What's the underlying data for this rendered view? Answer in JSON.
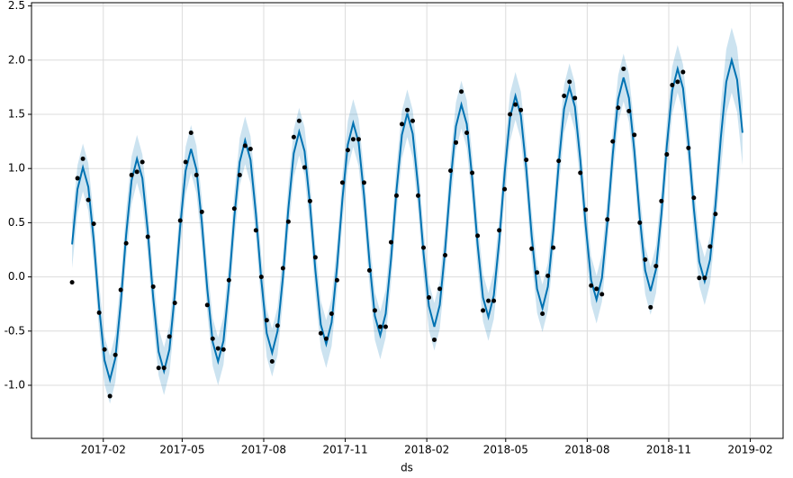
{
  "chart_data": {
    "type": "forecast",
    "xlabel": "ds",
    "grid": true,
    "xlim": [
      -50,
      798
    ],
    "ylim": [
      -1.49,
      2.53
    ],
    "xticks": [
      {
        "value": 31,
        "label": "2017-02"
      },
      {
        "value": 120,
        "label": "2017-05"
      },
      {
        "value": 212,
        "label": "2017-08"
      },
      {
        "value": 304,
        "label": "2017-11"
      },
      {
        "value": 396,
        "label": "2018-02"
      },
      {
        "value": 485,
        "label": "2018-05"
      },
      {
        "value": 577,
        "label": "2018-08"
      },
      {
        "value": 669,
        "label": "2018-11"
      },
      {
        "value": 761,
        "label": "2019-02"
      }
    ],
    "yticks": [
      {
        "value": -1,
        "label": "-1.0"
      },
      -0.5,
      {
        "value": 0,
        "label": "0.0"
      },
      0.5,
      {
        "value": 1,
        "label": "1.0"
      },
      1.5,
      {
        "value": 2,
        "label": "2.0"
      },
      2.5
    ],
    "x": [
      -4.2,
      1.9,
      8,
      14.1,
      20.2,
      26.3,
      32.4,
      38.5,
      44.6,
      50.7,
      56.8,
      62.9,
      69,
      75.1,
      81.2,
      87.3,
      93.4,
      99.5,
      105.6,
      111.7,
      117.8,
      123.9,
      130,
      136.1,
      142.2,
      148.3,
      154.4,
      160.5,
      166.6,
      172.7,
      178.8,
      184.9,
      191,
      197.1,
      203.2,
      209.3,
      215.4,
      221.5,
      227.6,
      233.7,
      239.8,
      245.9,
      252,
      258.1,
      264.2,
      270.3,
      276.4,
      282.5,
      288.6,
      294.7,
      300.8,
      306.9,
      313,
      319.1,
      325.2,
      331.3,
      337.4,
      343.5,
      349.6,
      355.7,
      361.8,
      367.9,
      374,
      380.1,
      386.2,
      392.3,
      398.4,
      404.5,
      410.6,
      416.7,
      422.8,
      428.9,
      435,
      441.1,
      447.2,
      453.3,
      459.4,
      465.5,
      471.6,
      477.7,
      483.8,
      489.9,
      496,
      502.1,
      508.2,
      514.3,
      520.4,
      526.5,
      532.6,
      538.7,
      544.8,
      550.9,
      557,
      563.1,
      569.2,
      575.3,
      581.4,
      587.5,
      593.6,
      599.7,
      605.8,
      611.9,
      618,
      624.1,
      630.2,
      636.3,
      642.4,
      648.5,
      654.6,
      660.7,
      666.8,
      672.9,
      679,
      685.1,
      691.2,
      697.3,
      703.4,
      709.5,
      715.6,
      721.7,
      727.8,
      733.9,
      740,
      746.1,
      752.2
    ],
    "series": [
      {
        "color": "#0072B2",
        "values": [
          0.3,
          0.81,
          1.01,
          0.83,
          0.34,
          -0.28,
          -0.77,
          -0.95,
          -0.75,
          -0.24,
          0.39,
          0.89,
          1.09,
          0.91,
          0.42,
          -0.19,
          -0.69,
          -0.87,
          -0.67,
          -0.16,
          0.47,
          0.98,
          1.18,
          0.99,
          0.5,
          -0.11,
          -0.6,
          -0.78,
          -0.59,
          -0.08,
          0.55,
          1.06,
          1.26,
          1.08,
          0.58,
          -0.03,
          -0.52,
          -0.7,
          -0.5,
          0.0,
          0.63,
          1.14,
          1.34,
          1.16,
          0.67,
          0.06,
          -0.44,
          -0.62,
          -0.42,
          0.09,
          0.72,
          1.22,
          1.42,
          1.24,
          0.75,
          0.14,
          -0.36,
          -0.54,
          -0.34,
          0.17,
          0.8,
          1.31,
          1.51,
          1.32,
          0.83,
          0.22,
          -0.27,
          -0.46,
          -0.26,
          0.25,
          0.88,
          1.39,
          1.59,
          1.41,
          0.91,
          0.3,
          -0.19,
          -0.37,
          -0.17,
          0.33,
          0.96,
          1.47,
          1.67,
          1.49,
          1.0,
          0.38,
          -0.11,
          -0.29,
          -0.09,
          0.42,
          1.04,
          1.55,
          1.75,
          1.57,
          1.08,
          0.47,
          -0.03,
          -0.21,
          -0.01,
          0.5,
          1.13,
          1.64,
          1.84,
          1.65,
          1.16,
          0.55,
          0.06,
          -0.13,
          0.07,
          0.58,
          1.21,
          1.72,
          1.92,
          1.74,
          1.24,
          0.63,
          0.14,
          -0.04,
          0.16,
          0.66,
          1.29,
          1.8,
          2.0,
          1.82,
          1.33
        ]
      }
    ],
    "band": {
      "color": "#0072B2",
      "lower": [
        0.08,
        0.59,
        0.79,
        0.61,
        0.12,
        -0.5,
        -0.99,
        -1.17,
        -0.97,
        -0.46,
        0.17,
        0.67,
        0.87,
        0.69,
        0.2,
        -0.41,
        -0.91,
        -1.09,
        -0.89,
        -0.38,
        0.25,
        0.76,
        0.96,
        0.77,
        0.28,
        -0.33,
        -0.82,
        -1.0,
        -0.81,
        -0.3,
        0.33,
        0.84,
        1.04,
        0.86,
        0.36,
        -0.25,
        -0.74,
        -0.92,
        -0.72,
        -0.22,
        0.41,
        0.92,
        1.12,
        0.94,
        0.45,
        -0.16,
        -0.66,
        -0.84,
        -0.64,
        -0.13,
        0.5,
        1.0,
        1.2,
        1.02,
        0.53,
        -0.08,
        -0.58,
        -0.76,
        -0.56,
        -0.05,
        0.58,
        1.09,
        1.29,
        1.1,
        0.61,
        0.0,
        -0.49,
        -0.68,
        -0.48,
        0.03,
        0.66,
        1.17,
        1.37,
        1.19,
        0.69,
        0.08,
        -0.41,
        -0.59,
        -0.39,
        0.11,
        0.74,
        1.25,
        1.45,
        1.27,
        0.78,
        0.16,
        -0.33,
        -0.51,
        -0.31,
        0.2,
        0.82,
        1.33,
        1.53,
        1.35,
        0.86,
        0.25,
        -0.25,
        -0.43,
        -0.23,
        0.28,
        0.91,
        1.42,
        1.62,
        1.43,
        0.94,
        0.33,
        -0.16,
        -0.35,
        -0.15,
        0.36,
        0.99,
        1.5,
        1.7,
        1.52,
        1.02,
        0.41,
        -0.08,
        -0.26,
        -0.06,
        0.44,
        0.99,
        1.5,
        1.7,
        1.52,
        1.03
      ],
      "upper": [
        0.52,
        1.03,
        1.23,
        1.05,
        0.56,
        -0.06,
        -0.55,
        -0.73,
        -0.53,
        -0.02,
        0.61,
        1.11,
        1.31,
        1.13,
        0.64,
        0.03,
        -0.47,
        -0.65,
        -0.45,
        0.06,
        0.69,
        1.2,
        1.4,
        1.21,
        0.72,
        0.11,
        -0.38,
        -0.56,
        -0.37,
        0.14,
        0.77,
        1.28,
        1.48,
        1.3,
        0.8,
        0.19,
        -0.3,
        -0.48,
        -0.28,
        0.22,
        0.85,
        1.36,
        1.56,
        1.38,
        0.89,
        0.28,
        -0.22,
        -0.4,
        -0.2,
        0.31,
        0.94,
        1.44,
        1.64,
        1.46,
        0.97,
        0.36,
        -0.14,
        -0.32,
        -0.12,
        0.39,
        1.02,
        1.53,
        1.73,
        1.54,
        1.05,
        0.44,
        -0.05,
        -0.24,
        -0.04,
        0.47,
        1.1,
        1.61,
        1.81,
        1.63,
        1.13,
        0.52,
        0.03,
        -0.15,
        0.05,
        0.55,
        1.18,
        1.69,
        1.89,
        1.71,
        1.22,
        0.6,
        0.11,
        -0.07,
        0.13,
        0.64,
        1.26,
        1.77,
        1.97,
        1.79,
        1.3,
        0.69,
        0.19,
        0.01,
        0.21,
        0.72,
        1.35,
        1.86,
        2.06,
        1.87,
        1.38,
        0.77,
        0.28,
        0.09,
        0.29,
        0.8,
        1.43,
        1.94,
        2.14,
        1.96,
        1.46,
        0.85,
        0.36,
        0.18,
        0.38,
        0.88,
        1.59,
        2.1,
        2.3,
        2.12,
        1.63
      ]
    },
    "points": {
      "color": "#000000",
      "values": [
        -0.05,
        0.91,
        1.09,
        0.71,
        0.49,
        -0.33,
        -0.67,
        -1.1,
        -0.72,
        -0.12,
        0.31,
        0.94,
        0.97,
        1.06,
        0.37,
        -0.09,
        -0.84,
        -0.84,
        -0.55,
        -0.24,
        0.52,
        1.06,
        1.33,
        0.94,
        0.6,
        -0.26,
        -0.57,
        -0.66,
        -0.67,
        -0.03,
        0.63,
        0.94,
        1.21,
        1.18,
        0.43,
        0.0,
        -0.4,
        -0.78,
        -0.45,
        0.08,
        0.51,
        1.29,
        1.44,
        1.01,
        0.7,
        0.18,
        -0.52,
        -0.57,
        -0.34,
        -0.03,
        0.87,
        1.17,
        1.27,
        1.27,
        0.87,
        0.06,
        -0.31,
        -0.46,
        -0.46,
        0.32,
        0.75,
        1.41,
        1.54,
        1.44,
        0.75,
        0.27,
        -0.19,
        -0.58,
        -0.11,
        0.2,
        0.98,
        1.24,
        1.71,
        1.33,
        0.96,
        0.38,
        -0.31,
        -0.22,
        -0.22,
        0.43,
        0.81,
        1.5,
        1.59,
        1.54,
        1.08,
        0.26,
        0.04,
        -0.34,
        0.01,
        0.27,
        1.07,
        1.67,
        1.8,
        1.65,
        0.96,
        0.62,
        -0.08,
        -0.11,
        -0.16,
        0.53,
        1.25,
        1.56,
        1.92,
        1.53,
        1.31,
        0.5,
        0.16,
        -0.28,
        0.1,
        0.7,
        1.13,
        1.77,
        1.8,
        1.89,
        1.19,
        0.73,
        -0.01,
        -0.01,
        0.28,
        0.58,
        null,
        null,
        null,
        null,
        null
      ]
    }
  }
}
